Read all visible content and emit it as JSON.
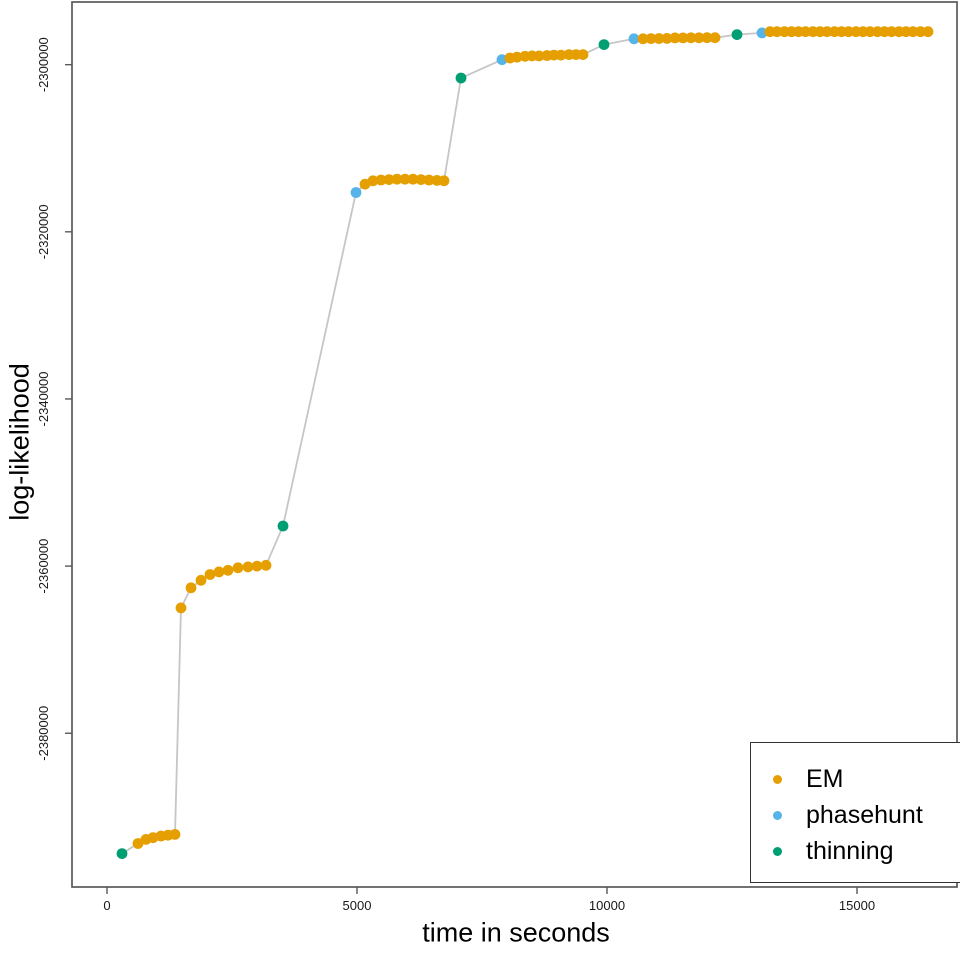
{
  "figure": {
    "background_color": "#ffffff",
    "axis_color": "#595959",
    "tick_label_color": "#1a1a1a"
  },
  "chart_data": {
    "type": "line",
    "title": "",
    "xlabel": "time in seconds",
    "ylabel": "log-likelihood",
    "xlim": [
      -700,
      17000
    ],
    "ylim": [
      -2398400,
      -2292500
    ],
    "x_ticks": [
      0,
      5000,
      10000,
      15000
    ],
    "y_ticks": [
      -2300000,
      -2320000,
      -2340000,
      -2360000,
      -2380000
    ],
    "grid": false,
    "legend_position": "bottom-right",
    "line_color": "#c6c6c6",
    "axis_color": "#595959",
    "series": [
      {
        "name": "EM",
        "color": "#E69F00"
      },
      {
        "name": "phasehunt",
        "color": "#56B4E9"
      },
      {
        "name": "thinning",
        "color": "#009E73"
      }
    ],
    "points_format": [
      "time_seconds",
      "log_likelihood",
      "series"
    ],
    "points": [
      [
        300,
        -2394400,
        "thinning"
      ],
      [
        620,
        -2393200,
        "EM"
      ],
      [
        780,
        -2392700,
        "EM"
      ],
      [
        920,
        -2392500,
        "EM"
      ],
      [
        1080,
        -2392300,
        "EM"
      ],
      [
        1220,
        -2392200,
        "EM"
      ],
      [
        1360,
        -2392100,
        "EM"
      ],
      [
        1480,
        -2365000,
        "EM"
      ],
      [
        1680,
        -2362600,
        "EM"
      ],
      [
        1880,
        -2361700,
        "EM"
      ],
      [
        2060,
        -2361000,
        "EM"
      ],
      [
        2240,
        -2360700,
        "EM"
      ],
      [
        2420,
        -2360500,
        "EM"
      ],
      [
        2620,
        -2360200,
        "EM"
      ],
      [
        2820,
        -2360100,
        "EM"
      ],
      [
        3000,
        -2360000,
        "EM"
      ],
      [
        3180,
        -2359900,
        "EM"
      ],
      [
        3520,
        -2355200,
        "thinning"
      ],
      [
        4980,
        -2315300,
        "phasehunt"
      ],
      [
        5160,
        -2314300,
        "EM"
      ],
      [
        5320,
        -2313900,
        "EM"
      ],
      [
        5480,
        -2313800,
        "EM"
      ],
      [
        5640,
        -2313750,
        "EM"
      ],
      [
        5800,
        -2313700,
        "EM"
      ],
      [
        5960,
        -2313700,
        "EM"
      ],
      [
        6120,
        -2313700,
        "EM"
      ],
      [
        6280,
        -2313750,
        "EM"
      ],
      [
        6440,
        -2313800,
        "EM"
      ],
      [
        6600,
        -2313850,
        "EM"
      ],
      [
        6740,
        -2313900,
        "EM"
      ],
      [
        7080,
        -2301600,
        "thinning"
      ],
      [
        7900,
        -2299400,
        "phasehunt"
      ],
      [
        8060,
        -2299200,
        "EM"
      ],
      [
        8200,
        -2299100,
        "EM"
      ],
      [
        8360,
        -2299000,
        "EM"
      ],
      [
        8500,
        -2298950,
        "EM"
      ],
      [
        8640,
        -2298950,
        "EM"
      ],
      [
        8800,
        -2298900,
        "EM"
      ],
      [
        8940,
        -2298850,
        "EM"
      ],
      [
        9080,
        -2298850,
        "EM"
      ],
      [
        9240,
        -2298800,
        "EM"
      ],
      [
        9380,
        -2298800,
        "EM"
      ],
      [
        9520,
        -2298800,
        "EM"
      ],
      [
        9940,
        -2297600,
        "thinning"
      ],
      [
        10540,
        -2296900,
        "phasehunt"
      ],
      [
        10720,
        -2296900,
        "EM"
      ],
      [
        10880,
        -2296880,
        "EM"
      ],
      [
        11040,
        -2296870,
        "EM"
      ],
      [
        11200,
        -2296860,
        "EM"
      ],
      [
        11360,
        -2296800,
        "EM"
      ],
      [
        11520,
        -2296790,
        "EM"
      ],
      [
        11680,
        -2296780,
        "EM"
      ],
      [
        11840,
        -2296780,
        "EM"
      ],
      [
        12000,
        -2296770,
        "EM"
      ],
      [
        12160,
        -2296770,
        "EM"
      ],
      [
        12600,
        -2296400,
        "thinning"
      ],
      [
        13100,
        -2296200,
        "phasehunt"
      ],
      [
        13260,
        -2296050,
        "EM"
      ],
      [
        13400,
        -2296050,
        "EM"
      ],
      [
        13550,
        -2296050,
        "EM"
      ],
      [
        13690,
        -2296050,
        "EM"
      ],
      [
        13830,
        -2296050,
        "EM"
      ],
      [
        13970,
        -2296050,
        "EM"
      ],
      [
        14120,
        -2296050,
        "EM"
      ],
      [
        14260,
        -2296050,
        "EM"
      ],
      [
        14400,
        -2296050,
        "EM"
      ],
      [
        14550,
        -2296050,
        "EM"
      ],
      [
        14690,
        -2296050,
        "EM"
      ],
      [
        14830,
        -2296050,
        "EM"
      ],
      [
        14980,
        -2296050,
        "EM"
      ],
      [
        15120,
        -2296050,
        "EM"
      ],
      [
        15260,
        -2296050,
        "EM"
      ],
      [
        15410,
        -2296050,
        "EM"
      ],
      [
        15550,
        -2296050,
        "EM"
      ],
      [
        15690,
        -2296050,
        "EM"
      ],
      [
        15840,
        -2296050,
        "EM"
      ],
      [
        15980,
        -2296050,
        "EM"
      ],
      [
        16120,
        -2296050,
        "EM"
      ],
      [
        16270,
        -2296050,
        "EM"
      ],
      [
        16420,
        -2296050,
        "EM"
      ]
    ]
  }
}
